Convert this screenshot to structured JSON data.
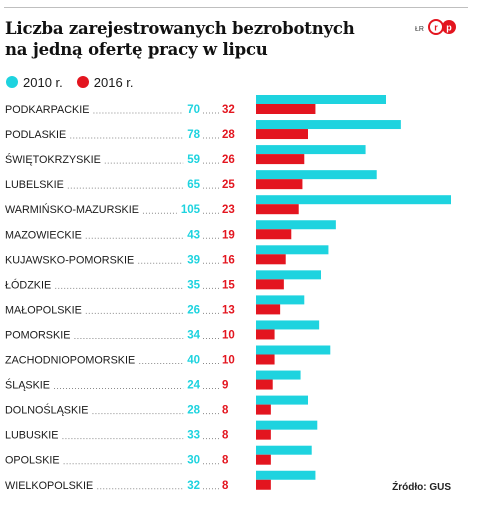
{
  "header": {
    "title_lines": [
      "Liczba zarejestrowanych bezrobotnych",
      "na jedną ofertę pracy w lipcu"
    ],
    "author": "ŁR",
    "logo": "rp-logo"
  },
  "source": "Źródło: GUS",
  "colors": {
    "series_2010": "#1ed3df",
    "series_2016": "#e3151f",
    "dots": "#8a8a8a",
    "text": "#1a1a1a"
  },
  "chart_data": {
    "type": "bar",
    "orientation": "horizontal",
    "title": "Liczba zarejestrowanych bezrobotnych na jedną ofertę pracy w lipcu",
    "categories": [
      "PODKARPACKIE",
      "PODLASKIE",
      "ŚWIĘTOKRZYSKIE",
      "LUBELSKIE",
      "WARMIŃSKO-MAZURSKIE",
      "MAZOWIECKIE",
      "KUJAWSKO-POMORSKIE",
      "ŁÓDZKIE",
      "MAŁOPOLSKIE",
      "POMORSKIE",
      "ZACHODNIOPOMORSKIE",
      "ŚLĄSKIE",
      "DOLNOŚLĄSKIE",
      "LUBUSKIE",
      "OPOLSKIE",
      "WIELKOPOLSKIE"
    ],
    "series": [
      {
        "name": "2010 r.",
        "color": "#1ed3df",
        "values": [
          70,
          78,
          59,
          65,
          105,
          43,
          39,
          35,
          26,
          34,
          40,
          24,
          28,
          33,
          30,
          32
        ]
      },
      {
        "name": "2016 r.",
        "color": "#e3151f",
        "values": [
          32,
          28,
          26,
          25,
          23,
          19,
          16,
          15,
          13,
          10,
          10,
          9,
          8,
          8,
          8,
          8
        ]
      }
    ],
    "legend_position": "top-left",
    "grid": false
  }
}
